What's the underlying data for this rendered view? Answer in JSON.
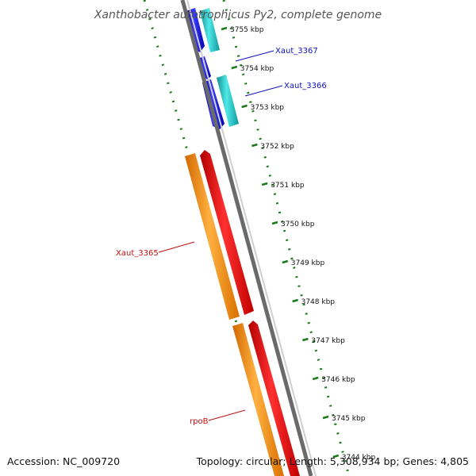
{
  "title": "Xanthobacter autotrophicus Py2, complete genome",
  "footer": {
    "accession": "Accession: NC_009720",
    "summary": "Topology: circular; Length: 5,308,934 bp; Genes: 4,805"
  },
  "ticks": [
    "3755 kbp",
    "3754 kbp",
    "3753 kbp",
    "3752 kbp",
    "3751 kbp",
    "3750 kbp",
    "3749 kbp",
    "3748 kbp",
    "3747 kbp",
    "3746 kbp",
    "3745 kbp",
    "3744 kbp"
  ],
  "gene_labels": {
    "xaut_3367": "Xaut_3367",
    "xaut_3366": "Xaut_3366",
    "xaut_3365": "Xaut_3365",
    "rpob": "rpoB"
  },
  "colors": {
    "backbone": "#808080",
    "forward_cds": "#1010e0",
    "forward_gene": "#20c0c0",
    "reverse_cds": "#ff1010",
    "reverse_gene": "#ff9010",
    "blue_label": "#1010c0",
    "red_label": "#c01010",
    "tick_color": "#1a7a1a",
    "title_color": "#555555"
  }
}
